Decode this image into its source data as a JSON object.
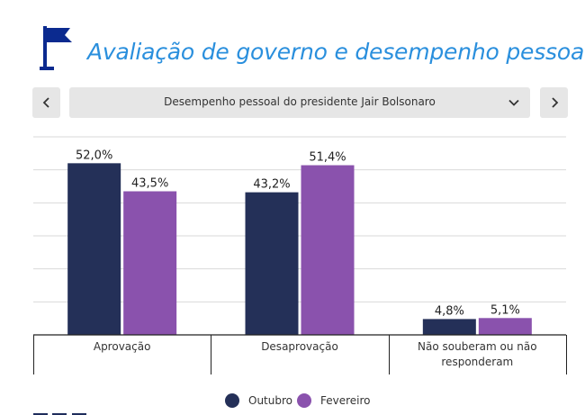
{
  "header": {
    "title": "Avaliação de governo e desempenho pessoal",
    "flag_color": "#0b2a8f"
  },
  "selector": {
    "prev_icon": "chevron-left",
    "next_icon": "chevron-right",
    "selected": "Desempenho pessoal do presidente Jair Bolsonaro",
    "caret_icon": "chevron-down"
  },
  "chart_data": {
    "type": "bar",
    "title": "Avaliação de governo e desempenho pessoal",
    "subtitle": "Desempenho pessoal do presidente Jair Bolsonaro",
    "categories": [
      {
        "label": "Aprovação",
        "lines": [
          "Aprovação"
        ]
      },
      {
        "label": "Desaprovação",
        "lines": [
          "Desaprovação"
        ]
      },
      {
        "label": "Não souberam ou não responderam",
        "lines": [
          "Não souberam ou não",
          "responderam"
        ]
      }
    ],
    "series": [
      {
        "name": "Outubro",
        "color": "#243058",
        "values": [
          52.0,
          43.2,
          4.8
        ],
        "labels": [
          "52,0%",
          "43,2%",
          "4,8%"
        ]
      },
      {
        "name": "Fevereiro",
        "color": "#8a52ad",
        "values": [
          43.5,
          51.4,
          5.1
        ],
        "labels": [
          "43,5%",
          "51,4%",
          "5,1%"
        ]
      }
    ],
    "ylim": [
      0,
      60
    ],
    "grid": true,
    "legend": "bottom-center"
  }
}
